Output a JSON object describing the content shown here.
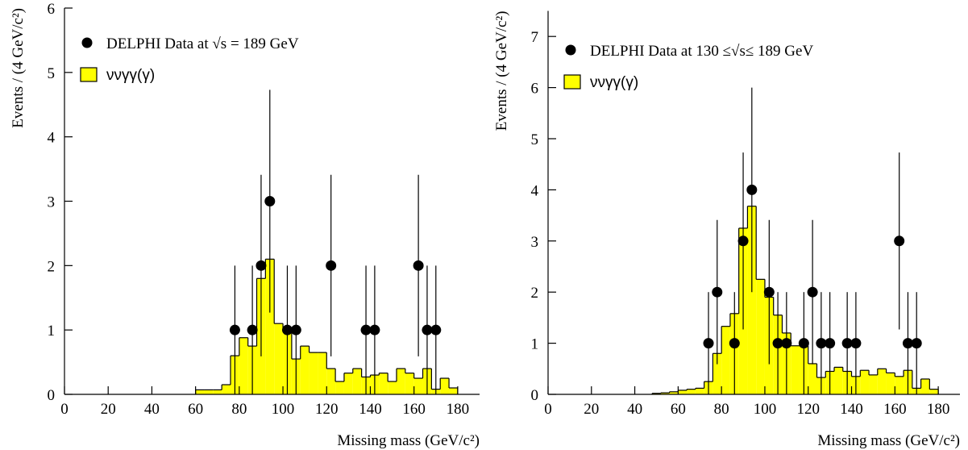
{
  "chart_data": [
    {
      "type": "histogram",
      "y_label": "Events / (4 GeV/c²)",
      "x_label": "Missing mass (GeV/c²)",
      "xlim": [
        0,
        190
      ],
      "ylim": [
        0,
        6
      ],
      "xticks": [
        0,
        20,
        40,
        60,
        80,
        100,
        120,
        140,
        160,
        180
      ],
      "yticks": [
        0,
        1,
        2,
        3,
        4,
        5,
        6
      ],
      "legend": "top-left",
      "name": "ννγγ(γ)",
      "color": "#ffff00",
      "bins": [
        60,
        64,
        68,
        72,
        76,
        80,
        84,
        88,
        92,
        96,
        100,
        104,
        108,
        112,
        116,
        120,
        124,
        128,
        132,
        136,
        140,
        144,
        148,
        152,
        156,
        160,
        164,
        168,
        172,
        176,
        180
      ],
      "values": [
        0.07,
        0.07,
        0.07,
        0.15,
        0.6,
        0.88,
        0.75,
        1.8,
        2.1,
        1.1,
        1.0,
        0.55,
        0.75,
        0.65,
        0.65,
        0.4,
        0.2,
        0.33,
        0.4,
        0.27,
        0.3,
        0.33,
        0.2,
        0.4,
        0.33,
        0.25,
        0.4,
        0.08,
        0.25,
        0.1
      ],
      "points": {
        "name": "DELPHI Data at √s = 189 GeV",
        "color": "#000000",
        "x": [
          78,
          86,
          90,
          94,
          102,
          106,
          122,
          138,
          142,
          162,
          166,
          170
        ],
        "values": [
          1,
          1,
          2,
          3,
          1,
          1,
          2,
          1,
          1,
          2,
          1,
          1
        ],
        "errors": [
          1,
          1,
          1.41,
          1.73,
          1,
          1,
          1.41,
          1,
          1,
          1.41,
          1,
          1
        ]
      }
    },
    {
      "type": "histogram",
      "y_label": "Events / (4 GeV/c²)",
      "x_label": "Missing mass (GeV/c²)",
      "xlim": [
        0,
        190
      ],
      "ylim": [
        0,
        7.5
      ],
      "xticks": [
        0,
        20,
        40,
        60,
        80,
        100,
        120,
        140,
        160,
        180
      ],
      "yticks": [
        0,
        1,
        2,
        3,
        4,
        5,
        6,
        7
      ],
      "legend": "top-left",
      "name": "ννγγ(γ)",
      "color": "#ffff00",
      "bins": [
        48,
        52,
        56,
        60,
        64,
        68,
        72,
        76,
        80,
        84,
        88,
        92,
        96,
        100,
        104,
        108,
        112,
        116,
        120,
        124,
        128,
        132,
        136,
        140,
        144,
        148,
        152,
        156,
        160,
        164,
        168,
        172,
        176,
        180
      ],
      "values": [
        0.02,
        0.03,
        0.05,
        0.08,
        0.1,
        0.12,
        0.25,
        0.8,
        1.33,
        1.58,
        3.25,
        3.68,
        2.25,
        1.9,
        1.55,
        1.2,
        0.95,
        0.95,
        0.6,
        0.33,
        0.45,
        0.53,
        0.45,
        0.35,
        0.47,
        0.38,
        0.5,
        0.42,
        0.35,
        0.47,
        0.12,
        0.3,
        0.1
      ],
      "points": {
        "name": "DELPHI Data at 130 ≤√s≤ 189 GeV",
        "color": "#000000",
        "x": [
          74,
          78,
          86,
          90,
          94,
          102,
          106,
          110,
          118,
          122,
          126,
          130,
          138,
          142,
          162,
          166,
          170
        ],
        "values": [
          1,
          2,
          1,
          3,
          4,
          2,
          1,
          1,
          1,
          2,
          1,
          1,
          1,
          1,
          3,
          1,
          1
        ],
        "errors": [
          1,
          1.41,
          1,
          1.73,
          2,
          1.41,
          1,
          1,
          1,
          1.41,
          1,
          1,
          1,
          1,
          1.73,
          1,
          1
        ]
      }
    }
  ]
}
